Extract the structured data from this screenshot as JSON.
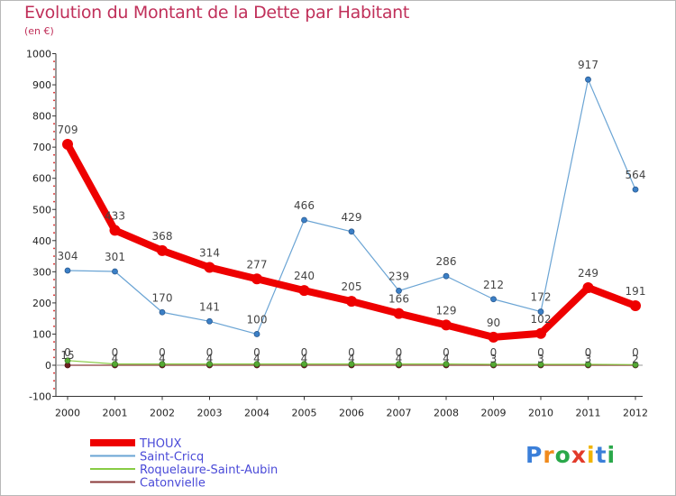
{
  "header": {
    "title": "Evolution du Montant de la Dette par Habitant",
    "subtitle": "(en €)"
  },
  "chart_data": {
    "type": "line",
    "title": "Evolution du Montant de la Dette par Habitant",
    "ylabel": "(en €)",
    "x": [
      "2000",
      "2001",
      "2002",
      "2003",
      "2004",
      "2005",
      "2006",
      "2007",
      "2008",
      "2009",
      "2010",
      "2011",
      "2012"
    ],
    "ylim": [
      -100,
      1000
    ],
    "yticks": [
      -100,
      0,
      100,
      200,
      300,
      400,
      500,
      600,
      700,
      800,
      900,
      1000
    ],
    "grid": false,
    "legend_position": "bottom-left",
    "series": [
      {
        "name": "THOUX",
        "color": "#ee0000",
        "values": [
          709,
          433,
          368,
          314,
          277,
          240,
          205,
          166,
          129,
          90,
          102,
          249,
          191
        ]
      },
      {
        "name": "Saint-Cricq",
        "color": "#6aa4d4",
        "values": [
          304,
          301,
          170,
          141,
          100,
          466,
          429,
          239,
          286,
          212,
          172,
          917,
          564
        ]
      },
      {
        "name": "Roquelaure-Saint-Aubin",
        "color": "#88cc44",
        "values": [
          15,
          4,
          4,
          4,
          4,
          4,
          4,
          4,
          4,
          3,
          3,
          3,
          2
        ]
      },
      {
        "name": "Catonvielle",
        "color": "#8b3a3a",
        "values": [
          0,
          0,
          0,
          0,
          0,
          0,
          0,
          0,
          0,
          0,
          0,
          0,
          0
        ]
      }
    ]
  },
  "logo": {
    "letters": [
      "P",
      "r",
      "o",
      "x",
      "i",
      "t",
      "i"
    ],
    "colors": [
      "#3b7fd9",
      "#f08a1c",
      "#2aa84a",
      "#e23a2a",
      "#f0b400",
      "#3b7fd9",
      "#2aa84a"
    ]
  }
}
